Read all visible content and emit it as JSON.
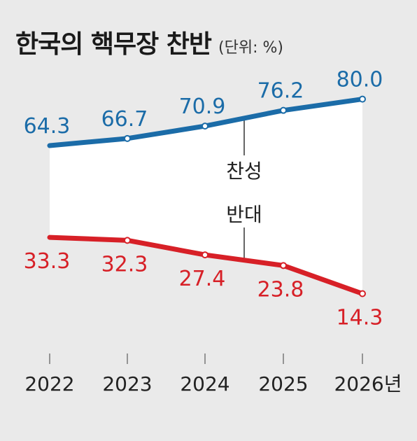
{
  "header": {
    "title": "한국의 핵무장 찬반",
    "unit": "(단위: %)"
  },
  "chart_data": {
    "type": "line",
    "categories": [
      "2022",
      "2023",
      "2024",
      "2025",
      "2026년"
    ],
    "series": [
      {
        "name": "찬성",
        "values": [
          64.3,
          66.7,
          70.9,
          76.2,
          80.0
        ],
        "labels": [
          "64.3",
          "66.7",
          "70.9",
          "76.2",
          "80.0"
        ],
        "color": "#1b6ca8"
      },
      {
        "name": "반대",
        "values": [
          33.3,
          32.3,
          27.4,
          23.8,
          14.3
        ],
        "labels": [
          "33.3",
          "32.3",
          "27.4",
          "23.8",
          "14.3"
        ],
        "color": "#d72027"
      }
    ],
    "fill_between": "#ffffff",
    "grid": false
  }
}
